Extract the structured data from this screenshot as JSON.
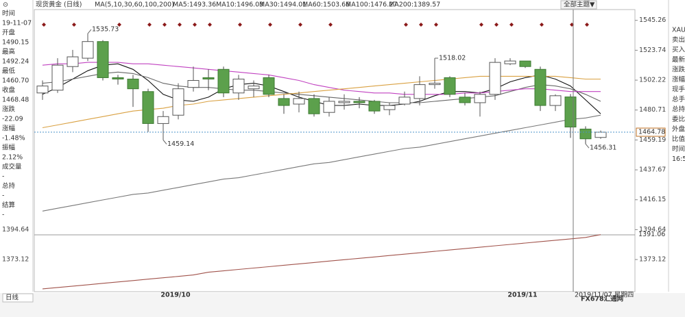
{
  "header": {
    "symbol": "现货黄金",
    "period": "(日线)",
    "ma_params": "MA(5,10,30,60,100,200)",
    "theme_button": "全部主题▼"
  },
  "info_panel": [
    {
      "label": "时间",
      "value": "19-11-07"
    },
    {
      "label": "开盘",
      "value": "1490.15"
    },
    {
      "label": "最高",
      "value": "1492.24"
    },
    {
      "label": "最低",
      "value": "1460.70"
    },
    {
      "label": "收盘",
      "value": "1468.48"
    },
    {
      "label": "涨跌",
      "value": "-22.09"
    },
    {
      "label": "涨幅",
      "value": "-1.48%"
    },
    {
      "label": "振幅",
      "value": "2.12%"
    },
    {
      "label": "成交量",
      "value": "-"
    },
    {
      "label": "总持",
      "value": "-"
    },
    {
      "label": "结算",
      "value": "-"
    }
  ],
  "right_panel": [
    "XAU",
    "卖出",
    "买入",
    "最新",
    "涨跌",
    "涨幅",
    "现手",
    "总手",
    "总持",
    "委比",
    "外盘",
    "比值",
    "时间",
    "16:5"
  ],
  "bottom": {
    "tab": "日线",
    "crosshair_date": "2019/11/07 星期四",
    "watermark": "FX678汇通网"
  },
  "chart_data": {
    "type": "candlestick",
    "categories": [
      null,
      null,
      null,
      null,
      null,
      null,
      null,
      null,
      null,
      "2019/10",
      null,
      null,
      null,
      null,
      null,
      null,
      null,
      null,
      null,
      null,
      null,
      null,
      null,
      null,
      null,
      null,
      null,
      null,
      null,
      null,
      null,
      null,
      "2019/11",
      null,
      null,
      null,
      null,
      null
    ],
    "candles": [
      {
        "open": 1493,
        "high": 1502,
        "low": 1488,
        "close": 1498
      },
      {
        "open": 1495,
        "high": 1518,
        "low": 1493,
        "close": 1513
      },
      {
        "open": 1512,
        "high": 1524,
        "low": 1508,
        "close": 1519
      },
      {
        "open": 1518,
        "high": 1535.73,
        "low": 1516,
        "close": 1530
      },
      {
        "open": 1530,
        "high": 1531,
        "low": 1502,
        "close": 1504
      },
      {
        "open": 1504,
        "high": 1506,
        "low": 1499,
        "close": 1503
      },
      {
        "open": 1503,
        "high": 1506,
        "low": 1483,
        "close": 1496
      },
      {
        "open": 1494,
        "high": 1496,
        "low": 1465,
        "close": 1471
      },
      {
        "open": 1471,
        "high": 1480,
        "low": 1459.14,
        "close": 1476
      },
      {
        "open": 1477,
        "high": 1500,
        "low": 1474,
        "close": 1496
      },
      {
        "open": 1497,
        "high": 1512,
        "low": 1494,
        "close": 1502
      },
      {
        "open": 1504,
        "high": 1510,
        "low": 1495,
        "close": 1503
      },
      {
        "open": 1510,
        "high": 1512,
        "low": 1490,
        "close": 1493
      },
      {
        "open": 1493,
        "high": 1506,
        "low": 1488,
        "close": 1503
      },
      {
        "open": 1496,
        "high": 1502,
        "low": 1490,
        "close": 1498
      },
      {
        "open": 1504,
        "high": 1506,
        "low": 1490,
        "close": 1492
      },
      {
        "open": 1489,
        "high": 1492,
        "low": 1478,
        "close": 1484
      },
      {
        "open": 1485,
        "high": 1494,
        "low": 1479,
        "close": 1489
      },
      {
        "open": 1489,
        "high": 1492,
        "low": 1476,
        "close": 1478
      },
      {
        "open": 1479,
        "high": 1490,
        "low": 1476,
        "close": 1487
      },
      {
        "open": 1486,
        "high": 1492,
        "low": 1481,
        "close": 1487
      },
      {
        "open": 1487,
        "high": 1490,
        "low": 1482,
        "close": 1486
      },
      {
        "open": 1487,
        "high": 1488,
        "low": 1478,
        "close": 1480
      },
      {
        "open": 1481,
        "high": 1486,
        "low": 1477,
        "close": 1484
      },
      {
        "open": 1485,
        "high": 1494,
        "low": 1484,
        "close": 1490
      },
      {
        "open": 1489,
        "high": 1505,
        "low": 1484,
        "close": 1499
      },
      {
        "open": 1499,
        "high": 1518.02,
        "low": 1496,
        "close": 1500
      },
      {
        "open": 1504,
        "high": 1505,
        "low": 1490,
        "close": 1492
      },
      {
        "open": 1490,
        "high": 1493,
        "low": 1484,
        "close": 1486
      },
      {
        "open": 1486,
        "high": 1494,
        "low": 1476,
        "close": 1492
      },
      {
        "open": 1492,
        "high": 1518,
        "low": 1488,
        "close": 1515
      },
      {
        "open": 1514,
        "high": 1518,
        "low": 1513,
        "close": 1516
      },
      {
        "open": 1516,
        "high": 1516,
        "low": 1511,
        "close": 1512
      },
      {
        "open": 1510,
        "high": 1512,
        "low": 1480,
        "close": 1484
      },
      {
        "open": 1484,
        "high": 1492,
        "low": 1480,
        "close": 1491
      },
      {
        "open": 1490.15,
        "high": 1492.24,
        "low": 1460.7,
        "close": 1468.48
      },
      {
        "open": 1467,
        "high": 1469,
        "low": 1456.31,
        "close": 1460
      },
      {
        "open": 1461,
        "high": 1466,
        "low": 1460,
        "close": 1464.78
      }
    ],
    "up_color": "#555555",
    "down_color": "#5ca04c",
    "series": [
      {
        "name": "MA5:1493.36",
        "color": "#111111",
        "values": [
          1492,
          1497,
          1503,
          1509,
          1513,
          1514,
          1510,
          1502,
          1492,
          1488,
          1487,
          1490,
          1496,
          1499,
          1500,
          1498,
          1494,
          1490,
          1487,
          1484,
          1484,
          1485,
          1484,
          1484,
          1485,
          1487,
          1491,
          1494,
          1494,
          1493,
          1496,
          1501,
          1504,
          1506,
          1503,
          1498,
          1488,
          1478
        ]
      },
      {
        "name": "MA10:1496.03",
        "color": "#666666",
        "values": [
          1500,
          1501,
          1503,
          1505,
          1507,
          1508,
          1507,
          1504,
          1500,
          1498,
          1497,
          1497,
          1496,
          1495,
          1495,
          1494,
          1493,
          1492,
          1491,
          1490,
          1489,
          1488,
          1487,
          1486,
          1486,
          1486,
          1487,
          1488,
          1489,
          1490,
          1491,
          1494,
          1497,
          1499,
          1498,
          1496,
          1492,
          1487
        ]
      },
      {
        "name": "MA30:1494.01",
        "color": "#c040c0",
        "values": [
          1513,
          1514,
          1514,
          1515,
          1515,
          1515,
          1514,
          1514,
          1513,
          1512,
          1511,
          1510,
          1509,
          1508,
          1507,
          1506,
          1504,
          1502,
          1499,
          1497,
          1495,
          1494,
          1493,
          1493,
          1492,
          1492,
          1492,
          1492,
          1493,
          1493,
          1494,
          1495,
          1496,
          1496,
          1495,
          1494,
          1494,
          1494
        ]
      },
      {
        "name": "MA60:1503.66",
        "color": "#d9a040",
        "values": [
          1468,
          1470,
          1472,
          1474,
          1476,
          1478,
          1480,
          1481,
          1482,
          1484,
          1485,
          1487,
          1488,
          1489,
          1490,
          1491,
          1492,
          1493,
          1494,
          1495,
          1496,
          1497,
          1498,
          1499,
          1500,
          1501,
          1502,
          1503,
          1504,
          1505,
          1505,
          1505,
          1505,
          1505,
          1505,
          1504,
          1503,
          1503
        ]
      },
      {
        "name": "MA100:1476.27",
        "color": "#777777",
        "values": [
          1408,
          1410,
          1412,
          1414,
          1416,
          1418,
          1420,
          1421,
          1423,
          1425,
          1427,
          1429,
          1431,
          1432,
          1434,
          1436,
          1438,
          1440,
          1442,
          1443,
          1445,
          1447,
          1449,
          1451,
          1453,
          1454,
          1456,
          1458,
          1460,
          1462,
          1464,
          1466,
          1468,
          1470,
          1472,
          1474,
          1475,
          1477
        ]
      },
      {
        "name": "MA200:1389.57",
        "color": "#a0524a",
        "values": [
          1352,
          1353,
          1354,
          1355,
          1356,
          1357,
          1358,
          1359,
          1360,
          1361,
          1362,
          1364,
          1365,
          1366,
          1367,
          1368,
          1369,
          1370,
          1371,
          1372,
          1373,
          1374,
          1375,
          1376,
          1377,
          1378,
          1379,
          1380,
          1381,
          1382,
          1383,
          1384,
          1385,
          1386,
          1387,
          1388,
          1389,
          1391.06
        ]
      }
    ],
    "ylim": [
      1350,
      1553
    ],
    "yticks": [
      1373.12,
      1394.64,
      1416.15,
      1437.67,
      1459.19,
      1480.71,
      1502.22,
      1523.74,
      1545.26
    ]
  }
}
